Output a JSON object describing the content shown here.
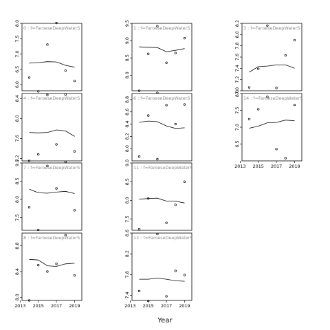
{
  "chart_data": {
    "type": "scatter",
    "xlabel": "Year",
    "x_ticks": [
      2013,
      2015,
      2017,
      2019
    ],
    "xlim": [
      2013.2,
      2019.8
    ],
    "panels": [
      {
        "label": "0 : f=FaroeseDeepWaterS",
        "ylim": [
          5.8,
          8.0
        ],
        "y_ticks": [
          6.0,
          6.5,
          7.0,
          7.5,
          8.0
        ],
        "points": {
          "x": [
            2014,
            2015,
            2016,
            2017,
            2018,
            2019
          ],
          "y": [
            6.23,
            5.78,
            7.31,
            8.01,
            6.46,
            6.12
          ]
        },
        "smooth": {
          "x": [
            2014,
            2015,
            2016,
            2017,
            2018,
            2019
          ],
          "y": [
            6.7,
            6.72,
            6.75,
            6.74,
            6.63,
            6.57
          ]
        }
      },
      {
        "label": "1 : f=FaroeseDeepWaterS",
        "ylim": [
          7.55,
          9.5
        ],
        "y_ticks": [
          8.0,
          8.5,
          9.0,
          9.5
        ],
        "points": {
          "x": [
            2014,
            2015,
            2016,
            2017,
            2018,
            2019
          ],
          "y": [
            7.55,
            8.62,
            9.42,
            8.36,
            8.64,
            9.07
          ]
        },
        "smooth": {
          "x": [
            2014,
            2015,
            2016,
            2017,
            2018,
            2019
          ],
          "y": [
            8.82,
            8.81,
            8.8,
            8.68,
            8.72,
            8.77
          ]
        }
      },
      {
        "label": "3 : f=FaroeseDeepWaterS",
        "ylim": [
          7.0,
          8.2
        ],
        "y_ticks": [
          7.0,
          7.2,
          7.4,
          7.6,
          7.8,
          8.0,
          8.2
        ],
        "points": {
          "x": [
            2014,
            2015,
            2016,
            2017,
            2018,
            2019
          ],
          "y": [
            7.06,
            7.39,
            8.16,
            7.05,
            7.63,
            7.9
          ]
        },
        "smooth": {
          "x": [
            2014,
            2015,
            2016,
            2017,
            2018,
            2019
          ],
          "y": [
            7.33,
            7.43,
            7.44,
            7.46,
            7.46,
            7.4
          ]
        }
      },
      {
        "label": "4 : f=FaroeseDeepWaterS",
        "ylim": [
          7.15,
          8.5
        ],
        "y_ticks": [
          7.2,
          7.6,
          8.0,
          8.4
        ],
        "points": {
          "x": [
            2014,
            2015,
            2016,
            2017,
            2018,
            2019
          ],
          "y": [
            7.15,
            7.28,
            8.47,
            7.48,
            8.48,
            7.34
          ]
        },
        "smooth": {
          "x": [
            2014,
            2015,
            2016,
            2017,
            2018,
            2019
          ],
          "y": [
            7.72,
            7.71,
            7.72,
            7.77,
            7.75,
            7.64
          ]
        }
      },
      {
        "label": "6 : f=FaroeseDeepWaterS",
        "ylim": [
          7.8,
          8.9
        ],
        "y_ticks": [
          8.0,
          8.2,
          8.4,
          8.6,
          8.8
        ],
        "points": {
          "x": [
            2014,
            2015,
            2016,
            2017,
            2018,
            2019
          ],
          "y": [
            7.87,
            8.54,
            8.91,
            8.71,
            8.4,
            8.72
          ]
        },
        "smooth": {
          "x": [
            2014,
            2015,
            2016,
            2017,
            2018,
            2019
          ],
          "y": [
            8.43,
            8.45,
            8.44,
            8.37,
            8.33,
            8.34
          ]
        }
      },
      {
        "label": "14 : f=FaroeseDeepWaterS",
        "ylim": [
          6.0,
          8.0
        ],
        "y_ticks": [
          6.5,
          7.0,
          7.5,
          8.0
        ],
        "points": {
          "x": [
            2014,
            2015,
            2016,
            2017,
            2018,
            2019
          ],
          "y": [
            7.24,
            7.53,
            7.9,
            6.35,
            6.08,
            7.66
          ]
        },
        "smooth": {
          "x": [
            2014,
            2015,
            2016,
            2017,
            2018,
            2019
          ],
          "y": [
            6.97,
            7.03,
            7.13,
            7.14,
            7.21,
            7.19
          ]
        }
      },
      {
        "label": "7 : f=FaroeseDeepWaterS",
        "ylim": [
          7.15,
          9.0
        ],
        "y_ticks": [
          7.5,
          8.0,
          8.5,
          9.0
        ],
        "points": {
          "x": [
            2014,
            2015,
            2016,
            2017,
            2018,
            2019
          ],
          "y": [
            7.78,
            7.16,
            8.92,
            8.3,
            9.03,
            7.7
          ]
        },
        "smooth": {
          "x": [
            2014,
            2015,
            2016,
            2017,
            2018,
            2019
          ],
          "y": [
            8.28,
            8.18,
            8.17,
            8.2,
            8.22,
            8.16
          ]
        }
      },
      {
        "label": "11 : f=FaroeseDeepWaterS",
        "ylim": [
          7.2,
          9.0
        ],
        "y_ticks": [
          7.5,
          8.0,
          8.5,
          9.0
        ],
        "points": {
          "x": [
            2014,
            2015,
            2016,
            2017,
            2018,
            2019
          ],
          "y": [
            7.23,
            8.05,
            9.1,
            7.4,
            7.88,
            8.5
          ]
        },
        "smooth": {
          "x": [
            2014,
            2015,
            2016,
            2017,
            2018,
            2019
          ],
          "y": [
            8.03,
            8.05,
            8.06,
            7.98,
            7.98,
            7.93
          ]
        }
      },
      {
        "label": "8 : f=FaroeseDeepWaterS",
        "ylim": [
          7.95,
          9.0
        ],
        "y_ticks": [
          8.0,
          8.4,
          8.8
        ],
        "points": {
          "x": [
            2014,
            2015,
            2016,
            2017,
            2018,
            2019
          ],
          "y": [
            7.95,
            8.5,
            8.4,
            8.52,
            8.97,
            8.34
          ]
        },
        "smooth": {
          "x": [
            2014,
            2015,
            2016,
            2017,
            2018,
            2019
          ],
          "y": [
            8.59,
            8.58,
            8.49,
            8.48,
            8.52,
            8.53
          ]
        }
      },
      {
        "label": "12 : f=FaroeseDeepWaterS",
        "ylim": [
          7.3,
          8.6
        ],
        "y_ticks": [
          7.4,
          7.8,
          8.2,
          8.6
        ],
        "points": {
          "x": [
            2014,
            2015,
            2016,
            2017,
            2018,
            2019
          ],
          "y": [
            7.48,
            7.29,
            8.58,
            7.38,
            7.87,
            7.79
          ]
        },
        "smooth": {
          "x": [
            2014,
            2015,
            2016,
            2017,
            2018,
            2019
          ],
          "y": [
            7.71,
            7.71,
            7.73,
            7.71,
            7.68,
            7.67
          ]
        }
      }
    ]
  }
}
